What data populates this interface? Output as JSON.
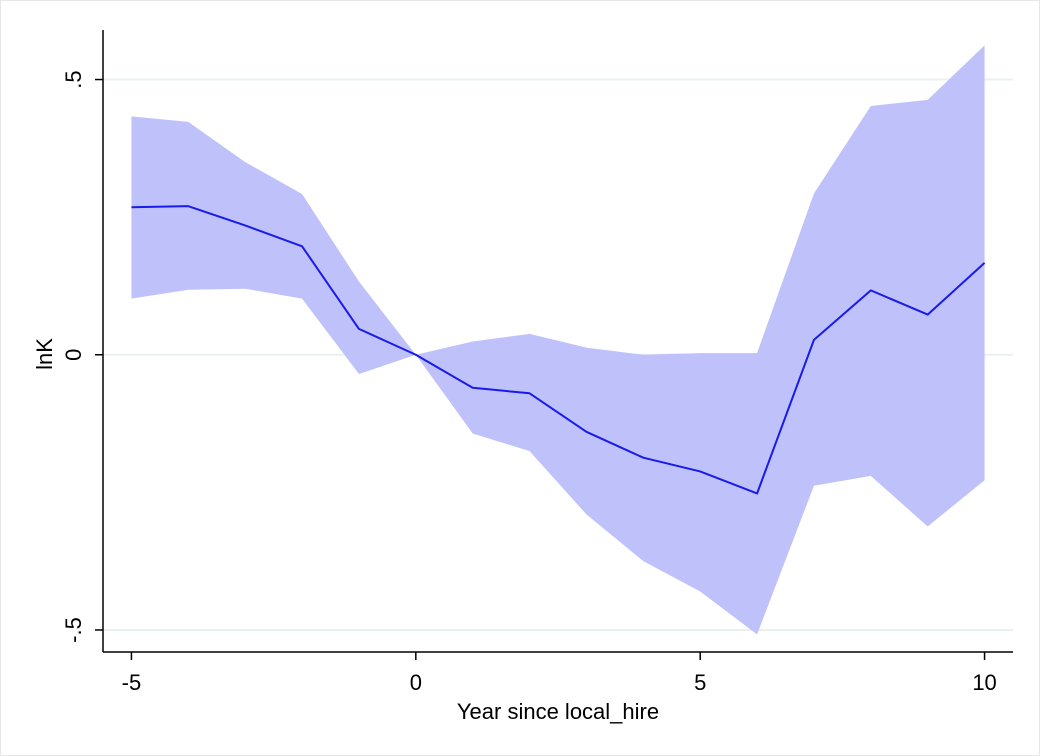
{
  "chart_data": {
    "type": "line",
    "xlabel": "Year since local_hire",
    "ylabel": "lnK",
    "xlim": [
      -5.5,
      10.5
    ],
    "ylim": [
      -0.54,
      0.59
    ],
    "x_ticks": [
      -5,
      0,
      5,
      10
    ],
    "x_tick_labels": [
      "-5",
      "0",
      "5",
      "10"
    ],
    "y_ticks": [
      -0.5,
      0,
      0.5
    ],
    "y_tick_labels": [
      "-.5",
      "0",
      ".5"
    ],
    "grid": "horizontal at y ticks",
    "colors": {
      "line": "#1a1aeb",
      "band": "#bfc1fa",
      "grid": "#e9f0f2",
      "axis": "#000000"
    },
    "x": [
      -5,
      -4,
      -3,
      -2,
      -1,
      0,
      1,
      2,
      3,
      4,
      5,
      6,
      7,
      8,
      9,
      10
    ],
    "series": [
      {
        "values": [
          0.268,
          0.27,
          0.235,
          0.197,
          0.047,
          0.0,
          -0.06,
          -0.07,
          -0.14,
          -0.187,
          -0.212,
          -0.252,
          0.027,
          0.117,
          0.073,
          0.167
        ],
        "lower": [
          0.102,
          0.118,
          0.12,
          0.102,
          -0.035,
          0.0,
          -0.143,
          -0.175,
          -0.29,
          -0.375,
          -0.43,
          -0.508,
          -0.238,
          -0.22,
          -0.312,
          -0.228
        ],
        "upper": [
          0.433,
          0.423,
          0.35,
          0.292,
          0.133,
          0.0,
          0.024,
          0.038,
          0.013,
          0.0,
          0.003,
          0.003,
          0.293,
          0.452,
          0.463,
          0.562
        ]
      }
    ]
  }
}
